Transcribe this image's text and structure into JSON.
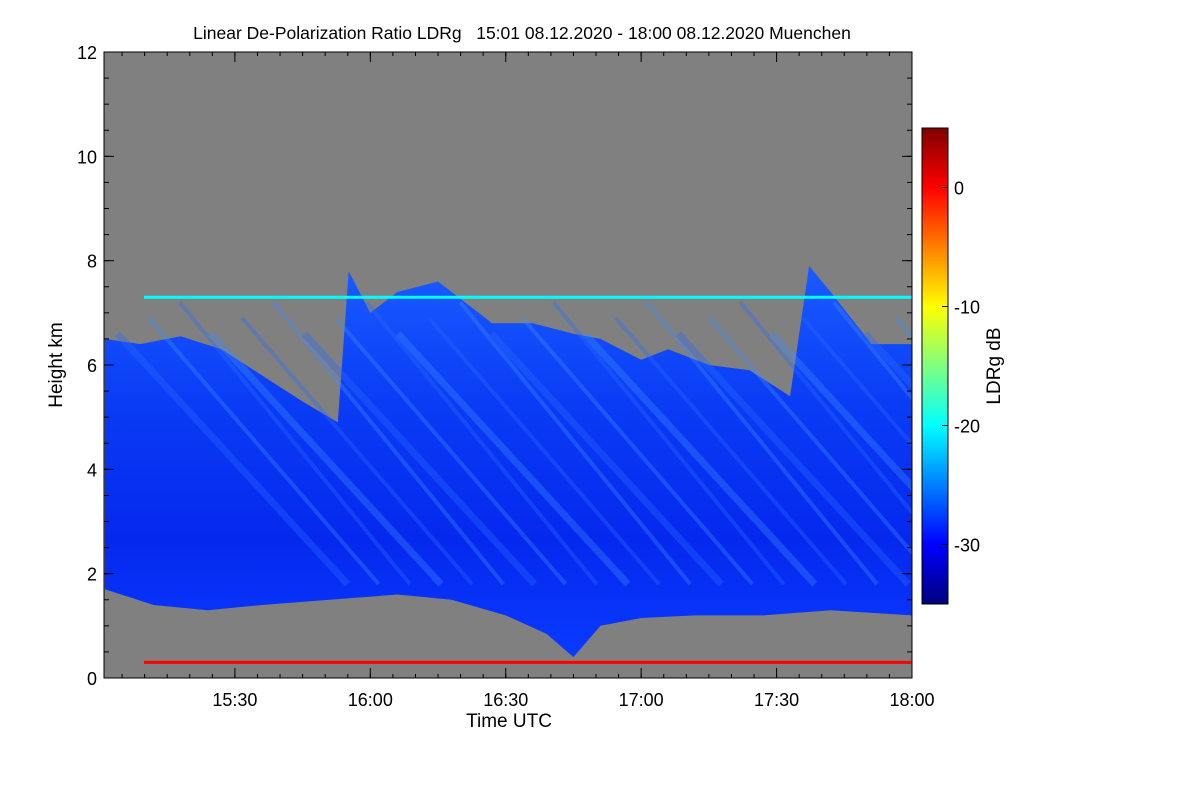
{
  "chart_data": {
    "type": "heatmap",
    "title": "Linear De-Polarization Ratio LDRg   15:01 08.12.2020 - 18:00 08.12.2020 Muenchen",
    "xlabel": "Time UTC",
    "ylabel": "Height km",
    "colorbar_label": "LDRg dB",
    "x_range_hours": [
      15.0167,
      18.0
    ],
    "y_range_km": [
      0,
      12
    ],
    "x_ticks": [
      {
        "value": 15.5,
        "label": "15:30"
      },
      {
        "value": 16.0,
        "label": "16:00"
      },
      {
        "value": 16.5,
        "label": "16:30"
      },
      {
        "value": 17.0,
        "label": "17:00"
      },
      {
        "value": 17.5,
        "label": "17:30"
      },
      {
        "value": 18.0,
        "label": "18:00"
      }
    ],
    "y_ticks": [
      {
        "value": 0,
        "label": "0"
      },
      {
        "value": 2,
        "label": "2"
      },
      {
        "value": 4,
        "label": "4"
      },
      {
        "value": 6,
        "label": "6"
      },
      {
        "value": 8,
        "label": "8"
      },
      {
        "value": 10,
        "label": "10"
      },
      {
        "value": 12,
        "label": "12"
      }
    ],
    "colorbar_range_db": [
      -35,
      5
    ],
    "colorbar_ticks": [
      {
        "value": 0,
        "label": "0"
      },
      {
        "value": -10,
        "label": "-10"
      },
      {
        "value": -20,
        "label": "-20"
      },
      {
        "value": -30,
        "label": "-30"
      }
    ],
    "colormap": [
      "#00007f",
      "#0000ff",
      "#007fff",
      "#00ffff",
      "#7fff7f",
      "#ffff00",
      "#ff7f00",
      "#ff0000",
      "#7f0000"
    ],
    "no_data_color": "#808080",
    "cloud_top_km": [
      {
        "t": 15.02,
        "h": 6.5
      },
      {
        "t": 15.15,
        "h": 6.4
      },
      {
        "t": 15.3,
        "h": 6.55
      },
      {
        "t": 15.45,
        "h": 6.3
      },
      {
        "t": 15.6,
        "h": 5.8
      },
      {
        "t": 15.75,
        "h": 5.3
      },
      {
        "t": 15.88,
        "h": 4.9
      },
      {
        "t": 15.92,
        "h": 7.8
      },
      {
        "t": 16.0,
        "h": 7.0
      },
      {
        "t": 16.1,
        "h": 7.4
      },
      {
        "t": 16.25,
        "h": 7.6
      },
      {
        "t": 16.45,
        "h": 6.8
      },
      {
        "t": 16.6,
        "h": 6.8
      },
      {
        "t": 16.75,
        "h": 6.6
      },
      {
        "t": 16.85,
        "h": 6.5
      },
      {
        "t": 17.0,
        "h": 6.1
      },
      {
        "t": 17.1,
        "h": 6.3
      },
      {
        "t": 17.25,
        "h": 6.0
      },
      {
        "t": 17.4,
        "h": 5.9
      },
      {
        "t": 17.55,
        "h": 5.4
      },
      {
        "t": 17.62,
        "h": 7.9
      },
      {
        "t": 17.7,
        "h": 7.4
      },
      {
        "t": 17.85,
        "h": 6.4
      },
      {
        "t": 18.0,
        "h": 6.4
      }
    ],
    "cloud_base_km": [
      {
        "t": 15.02,
        "h": 1.7
      },
      {
        "t": 15.2,
        "h": 1.4
      },
      {
        "t": 15.4,
        "h": 1.3
      },
      {
        "t": 15.6,
        "h": 1.4
      },
      {
        "t": 15.85,
        "h": 1.5
      },
      {
        "t": 16.1,
        "h": 1.6
      },
      {
        "t": 16.3,
        "h": 1.5
      },
      {
        "t": 16.5,
        "h": 1.2
      },
      {
        "t": 16.65,
        "h": 0.85
      },
      {
        "t": 16.75,
        "h": 0.4
      },
      {
        "t": 16.85,
        "h": 1.0
      },
      {
        "t": 17.0,
        "h": 1.15
      },
      {
        "t": 17.2,
        "h": 1.2
      },
      {
        "t": 17.45,
        "h": 1.2
      },
      {
        "t": 17.7,
        "h": 1.3
      },
      {
        "t": 18.0,
        "h": 1.2
      }
    ],
    "features": [
      {
        "name": "artifact-line-upper",
        "height_km": 7.3,
        "ldr_db": -18
      },
      {
        "name": "artifact-line-lower",
        "height_km": 0.3,
        "ldr_db": -2
      }
    ]
  }
}
